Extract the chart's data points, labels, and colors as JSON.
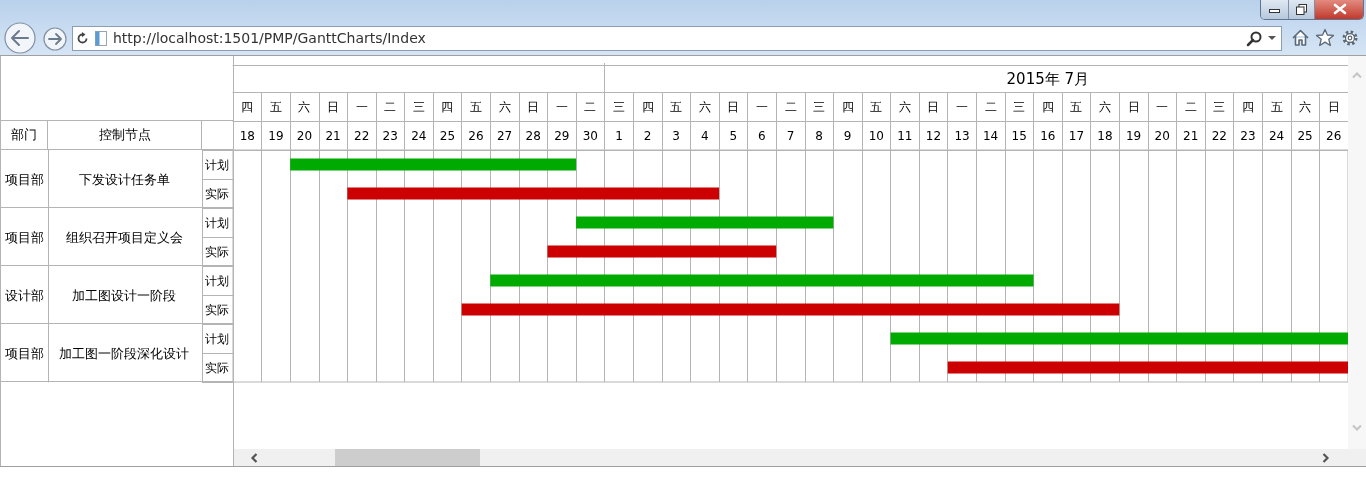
{
  "chart_data": {
    "type": "bar",
    "orientation": "horizontal",
    "categories": [
      "下发设计任务单",
      "组织召开项目定义会",
      "加工图设计一阶段",
      "加工图一阶段深化设计"
    ],
    "y2_categories": [
      "项目部",
      "项目部",
      "设计部",
      "项目部"
    ],
    "ylabel": "控制节点",
    "series": [
      {
        "color": "#00aa00",
        "base": [
          19.5,
          29.5,
          26.5,
          40.5
        ],
        "values": [
          10,
          9,
          19,
          16
        ]
      },
      {
        "color": "#cc0000",
        "base": [
          21.5,
          28.5,
          25.5,
          42.5
        ],
        "values": [
          13,
          8,
          23,
          14
        ]
      }
    ],
    "xlim": [
      17.5,
      56.5
    ],
    "xticks": [
      {
        "value": 17.5,
        "label": null
      },
      18,
      {
        "value": 18.5,
        "label": null
      },
      19,
      {
        "value": 19.5,
        "label": null
      },
      20,
      {
        "value": 20.5,
        "label": null
      },
      21,
      {
        "value": 21.5,
        "label": null
      },
      22,
      {
        "value": 22.5,
        "label": null
      },
      23,
      {
        "value": 23.5,
        "label": null
      },
      24,
      {
        "value": 24.5,
        "label": null
      },
      25,
      {
        "value": 25.5,
        "label": null
      },
      26,
      {
        "value": 26.5,
        "label": null
      },
      27,
      {
        "value": 27.5,
        "label": null
      },
      28,
      {
        "value": 28.5,
        "label": null
      },
      29,
      {
        "value": 29.5,
        "label": null
      },
      30,
      {
        "value": 30.5,
        "label": null
      }
    ],
    "x2lim": [
      -12.5,
      26.5
    ],
    "x2ticks": [
      {
        "value": 0.5,
        "label": null
      },
      1,
      {
        "value": 1.5,
        "label": null
      },
      2,
      {
        "value": 2.5,
        "label": null
      },
      3,
      {
        "value": 3.5,
        "label": null
      },
      4,
      {
        "value": 4.5,
        "label": null
      },
      5,
      {
        "value": 5.5,
        "label": null
      },
      6,
      {
        "value": 6.5,
        "label": null
      },
      7,
      {
        "value": 7.5,
        "label": null
      },
      8,
      {
        "value": 8.5,
        "label": null
      },
      9,
      {
        "value": 9.5,
        "label": null
      },
      10,
      {
        "value": 10.5,
        "label": null
      },
      11,
      {
        "value": 11.5,
        "label": null
      },
      12,
      {
        "value": 12.5,
        "label": null
      },
      13,
      {
        "value": 13.5,
        "label": null
      },
      14,
      {
        "value": 14.5,
        "label": null
      },
      15,
      {
        "value": 15.5,
        "label": null
      },
      16,
      {
        "value": 16.5,
        "label": null
      },
      17,
      {
        "value": 17.5,
        "label": null
      },
      18,
      {
        "value": 18.5,
        "label": null
      },
      19,
      {
        "value": 19.5,
        "label": null
      },
      20,
      {
        "value": 20.5,
        "label": null
      },
      21,
      {
        "value": 21.5,
        "label": null
      },
      22,
      {
        "value": 22.5,
        "label": null
      },
      23,
      {
        "value": 23.5,
        "label": null
      },
      24,
      {
        "value": 24.5,
        "label": null
      },
      25,
      {
        "value": 25.5,
        "label": null
      },
      26,
      {
        "value": 26.5,
        "label": null
      }
    ],
    "grid": "x",
    "annotations": [
      "部门",
      "http://localhost:1501/PMP/GanttCharts/Index",
      "2015年 7月",
      "计划",
      "实际",
      "四",
      "五",
      "六",
      "日",
      "一",
      "二",
      "三",
      "四",
      "五",
      "六",
      "日",
      "一",
      "二",
      "三",
      "四",
      "五",
      "六",
      "日",
      "一",
      "二",
      "三",
      "四",
      "五",
      "六",
      "日",
      "一",
      "二",
      "三",
      "四",
      "五",
      "六",
      "日",
      "一",
      "二",
      "三",
      "四",
      "五",
      "六",
      "日"
    ]
  }
}
